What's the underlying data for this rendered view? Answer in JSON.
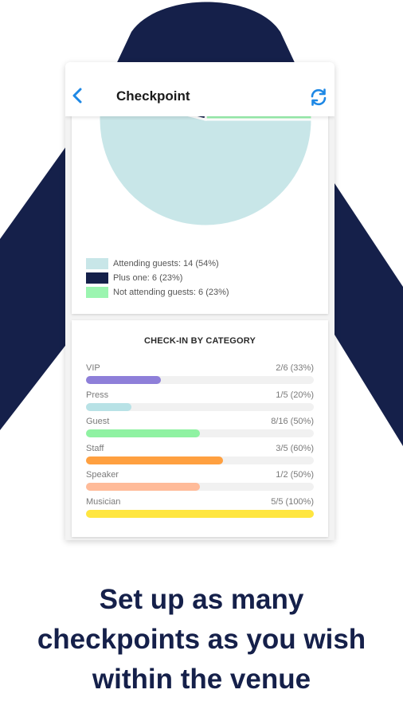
{
  "appbar": {
    "title": "Checkpoint",
    "back_icon": "chevron-left-icon",
    "refresh_icon": "refresh-icon",
    "accent": "#1e88e5"
  },
  "colors": {
    "navy": "#15204a",
    "attending": "#c8e6e8",
    "plus_one": "#15204a",
    "not_attending": "#9bf5b0"
  },
  "chart_data": {
    "type": "pie",
    "slices": [
      {
        "label": "Attending guests: 14 (54%)",
        "name": "Attending guests",
        "value": 14,
        "percent": 54,
        "color": "#c8e6e8"
      },
      {
        "label": "Plus one: 6 (23%)",
        "name": "Plus one",
        "value": 6,
        "percent": 23,
        "color": "#15204a"
      },
      {
        "label": "Not attending guests: 6 (23%)",
        "name": "Not attending guests",
        "value": 6,
        "percent": 23,
        "color": "#9bf5b0"
      }
    ]
  },
  "category_card": {
    "heading": "CHECK-IN BY CATEGORY",
    "rows": [
      {
        "label": "VIP",
        "value": "2/6 (33%)",
        "fraction": 0.33,
        "color": "#8e7fd9"
      },
      {
        "label": "Press",
        "value": "1/5 (20%)",
        "fraction": 0.2,
        "color": "#b8e2e6"
      },
      {
        "label": "Guest",
        "value": "8/16 (50%)",
        "fraction": 0.5,
        "color": "#8ff2a2"
      },
      {
        "label": "Staff",
        "value": "3/5 (60%)",
        "fraction": 0.6,
        "color": "#ffa040"
      },
      {
        "label": "Speaker",
        "value": "1/2 (50%)",
        "fraction": 0.5,
        "color": "#ffbb99"
      },
      {
        "label": "Musician",
        "value": "5/5 (100%)",
        "fraction": 1.0,
        "color": "#ffe640"
      }
    ]
  },
  "caption": {
    "line1": "Set up as many",
    "line2": "checkpoints as you wish",
    "line3": "within the venue"
  }
}
